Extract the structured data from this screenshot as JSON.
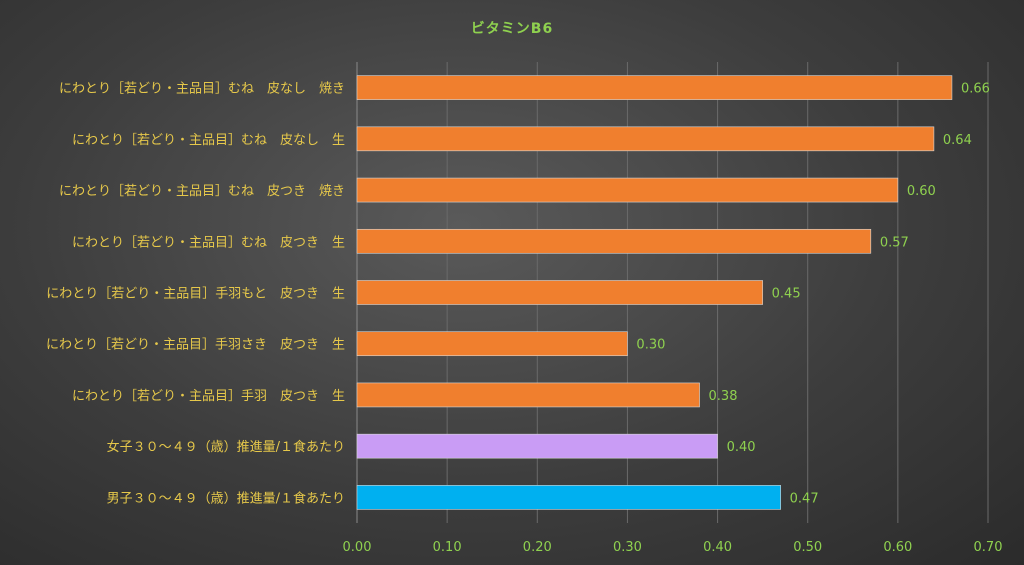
{
  "chart_data": {
    "type": "bar",
    "orientation": "horizontal",
    "title": "ビタミンB6",
    "xlabel": "",
    "ylabel": "",
    "xlim": [
      0,
      0.7
    ],
    "grid": true,
    "legend": "none",
    "ticks": [
      "0.00",
      "0.10",
      "0.20",
      "0.30",
      "0.40",
      "0.50",
      "0.60",
      "0.70"
    ],
    "tick_values": [
      0,
      0.1,
      0.2,
      0.3,
      0.4,
      0.5,
      0.6,
      0.7
    ],
    "categories": [
      "にわとり［若どり・主品目］むね　皮なし　焼き",
      "にわとり［若どり・主品目］むね　皮なし　生",
      "にわとり［若どり・主品目］むね　皮つき　焼き",
      "にわとり［若どり・主品目］むね　皮つき　生",
      "にわとり［若どり・主品目］手羽もと　皮つき　生",
      "にわとり［若どり・主品目］手羽さき　皮つき　生",
      "にわとり［若どり・主品目］手羽　皮つき　生",
      "女子３０～４９（歳）推進量/１食あたり",
      "男子３０～４９（歳）推進量/１食あたり"
    ],
    "values": [
      0.66,
      0.64,
      0.6,
      0.57,
      0.45,
      0.3,
      0.38,
      0.4,
      0.47
    ],
    "value_labels": [
      "0.66",
      "0.64",
      "0.60",
      "0.57",
      "0.45",
      "0.30",
      "0.38",
      "0.40",
      "0.47"
    ],
    "colors": [
      "#f07f2e",
      "#f07f2e",
      "#f07f2e",
      "#f07f2e",
      "#f07f2e",
      "#f07f2e",
      "#f07f2e",
      "#c99cf5",
      "#00b0f0"
    ]
  }
}
